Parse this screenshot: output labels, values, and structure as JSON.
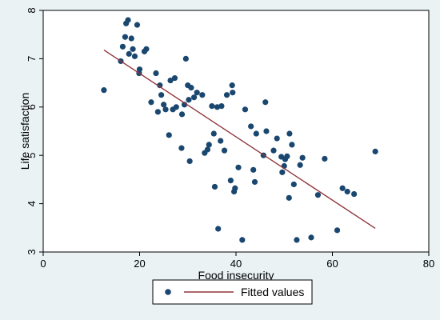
{
  "chart_data": {
    "type": "scatter",
    "xlabel": "Food insecurity",
    "ylabel": "Life satisfaction",
    "xlim": [
      0,
      80
    ],
    "ylim": [
      3,
      8
    ],
    "x_ticks": [
      "0",
      "20",
      "40",
      "60",
      "80"
    ],
    "y_ticks": [
      "3",
      "4",
      "5",
      "6",
      "7",
      "8"
    ],
    "grid": false,
    "legend": {
      "position": "bottom",
      "entries": [
        "",
        "Fitted values"
      ]
    },
    "colors": {
      "points": "#1a476f",
      "fit_line": "#90353b",
      "plot_bg": "#ffffff",
      "figure_bg": "#eaf2f3"
    },
    "series": [
      {
        "kind": "scatter",
        "x": [
          12.6,
          16.1,
          16.5,
          17.0,
          17.2,
          17.6,
          17.8,
          18.3,
          18.6,
          19.0,
          19.5,
          19.9,
          20.0,
          21.0,
          21.4,
          22.4,
          23.4,
          23.8,
          24.2,
          24.5,
          25.0,
          25.4,
          26.1,
          26.4,
          26.9,
          27.3,
          27.6,
          28.7,
          28.8,
          29.3,
          29.6,
          30.0,
          30.2,
          30.4,
          30.7,
          31.3,
          31.9,
          33.0,
          33.5,
          34.1,
          34.4,
          35.0,
          35.4,
          35.6,
          36.1,
          36.3,
          36.8,
          37.0,
          37.6,
          38.1,
          38.9,
          39.2,
          39.3,
          39.6,
          39.8,
          40.5,
          41.3,
          41.9,
          43.1,
          43.6,
          43.9,
          44.2,
          45.7,
          46.1,
          46.3,
          47.8,
          48.5,
          49.4,
          49.6,
          50.0,
          50.2,
          50.6,
          51.0,
          51.1,
          51.6,
          52.0,
          52.6,
          53.3,
          53.8,
          55.6,
          57.0,
          58.4,
          61.0,
          62.1,
          63.1,
          64.5,
          68.9
        ],
        "y": [
          6.35,
          6.95,
          7.25,
          7.45,
          7.73,
          7.8,
          7.1,
          7.42,
          7.2,
          7.05,
          7.7,
          6.7,
          6.78,
          7.15,
          7.2,
          6.1,
          6.7,
          5.9,
          6.45,
          6.25,
          6.05,
          5.95,
          5.42,
          6.55,
          5.95,
          6.6,
          6.0,
          5.15,
          5.85,
          6.05,
          7.0,
          6.45,
          6.15,
          4.88,
          6.4,
          6.2,
          6.3,
          6.25,
          5.05,
          5.12,
          5.22,
          6.02,
          5.45,
          4.35,
          6.0,
          3.48,
          5.3,
          6.02,
          5.1,
          6.25,
          4.48,
          6.45,
          6.3,
          4.25,
          4.32,
          4.75,
          3.25,
          5.95,
          5.6,
          4.7,
          4.45,
          5.45,
          5.0,
          6.1,
          5.5,
          5.1,
          5.35,
          4.97,
          4.65,
          4.78,
          4.92,
          4.98,
          4.12,
          5.45,
          5.22,
          4.4,
          3.25,
          4.8,
          4.95,
          3.3,
          4.18,
          4.93,
          3.45,
          4.32,
          4.25,
          4.2,
          5.08
        ]
      },
      {
        "name": "Fitted values",
        "kind": "line",
        "x": [
          12.6,
          68.9
        ],
        "y": [
          7.18,
          3.49
        ]
      }
    ]
  }
}
